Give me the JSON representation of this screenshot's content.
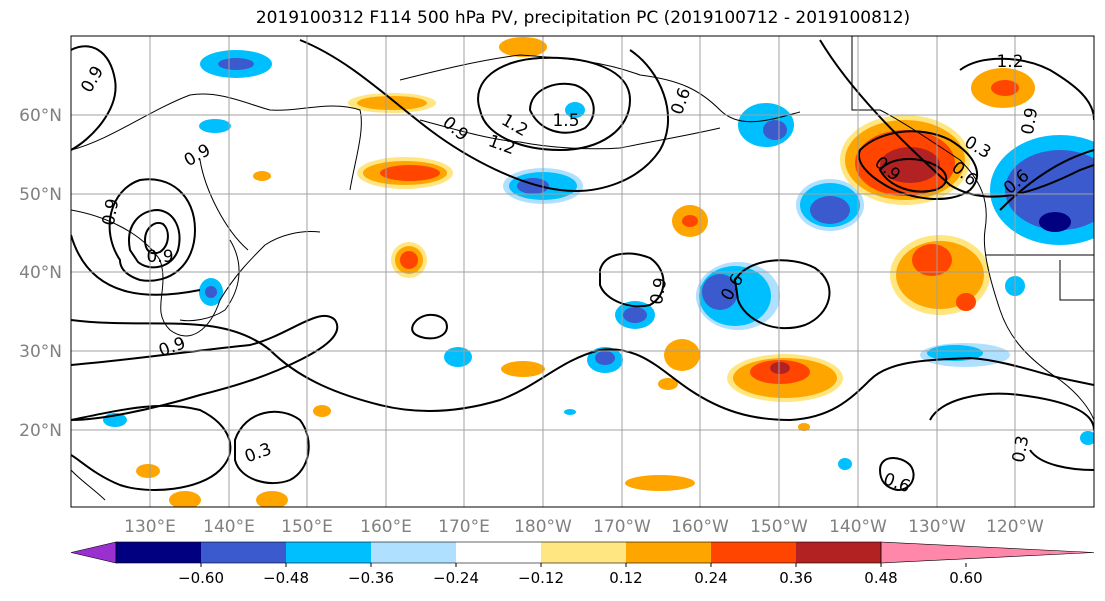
{
  "title": "2019100312 F114 500 hPa PV, precipitation PC (2019100712 - 2019100812)",
  "lat_labels": [
    "60°N",
    "50°N",
    "40°N",
    "30°N",
    "20°N"
  ],
  "lon_labels": [
    "130°E",
    "140°E",
    "150°E",
    "160°E",
    "170°E",
    "180°W",
    "170°W",
    "160°W",
    "150°W",
    "140°W",
    "130°W",
    "120°W"
  ],
  "colorbar": {
    "labels": [
      "−0.60",
      "−0.48",
      "−0.36",
      "−0.24",
      "−0.12",
      "0.12",
      "0.24",
      "0.36",
      "0.48",
      "0.60"
    ],
    "colors": [
      "#9b30d0",
      "#000080",
      "#3a5acd",
      "#00bfff",
      "#b0e0ff",
      "#ffffff",
      "#ffe680",
      "#ffa500",
      "#ff4500",
      "#b22222",
      "#ff88aa"
    ]
  },
  "contour_labels": [
    "0.9",
    "0.9",
    "0.9",
    "1.2",
    "1.5",
    "0.9",
    "0.6",
    "0.9",
    "1.2",
    "0.9",
    "0.6",
    "0.9",
    "0.6",
    "0.9",
    "0.3",
    "0.6",
    "0.3",
    "0.3",
    "1.2",
    "0.9",
    "0.6"
  ],
  "colors": {
    "neg_dark": "#3a5acd",
    "neg_mid": "#00bfff",
    "neg_light": "#b0e0ff",
    "pos_light": "#ffe680",
    "pos_mid": "#ffa500",
    "pos_strong": "#ff4500",
    "pos_dark": "#b22222",
    "coast": "#000000",
    "grid": "#a0a0a0"
  }
}
